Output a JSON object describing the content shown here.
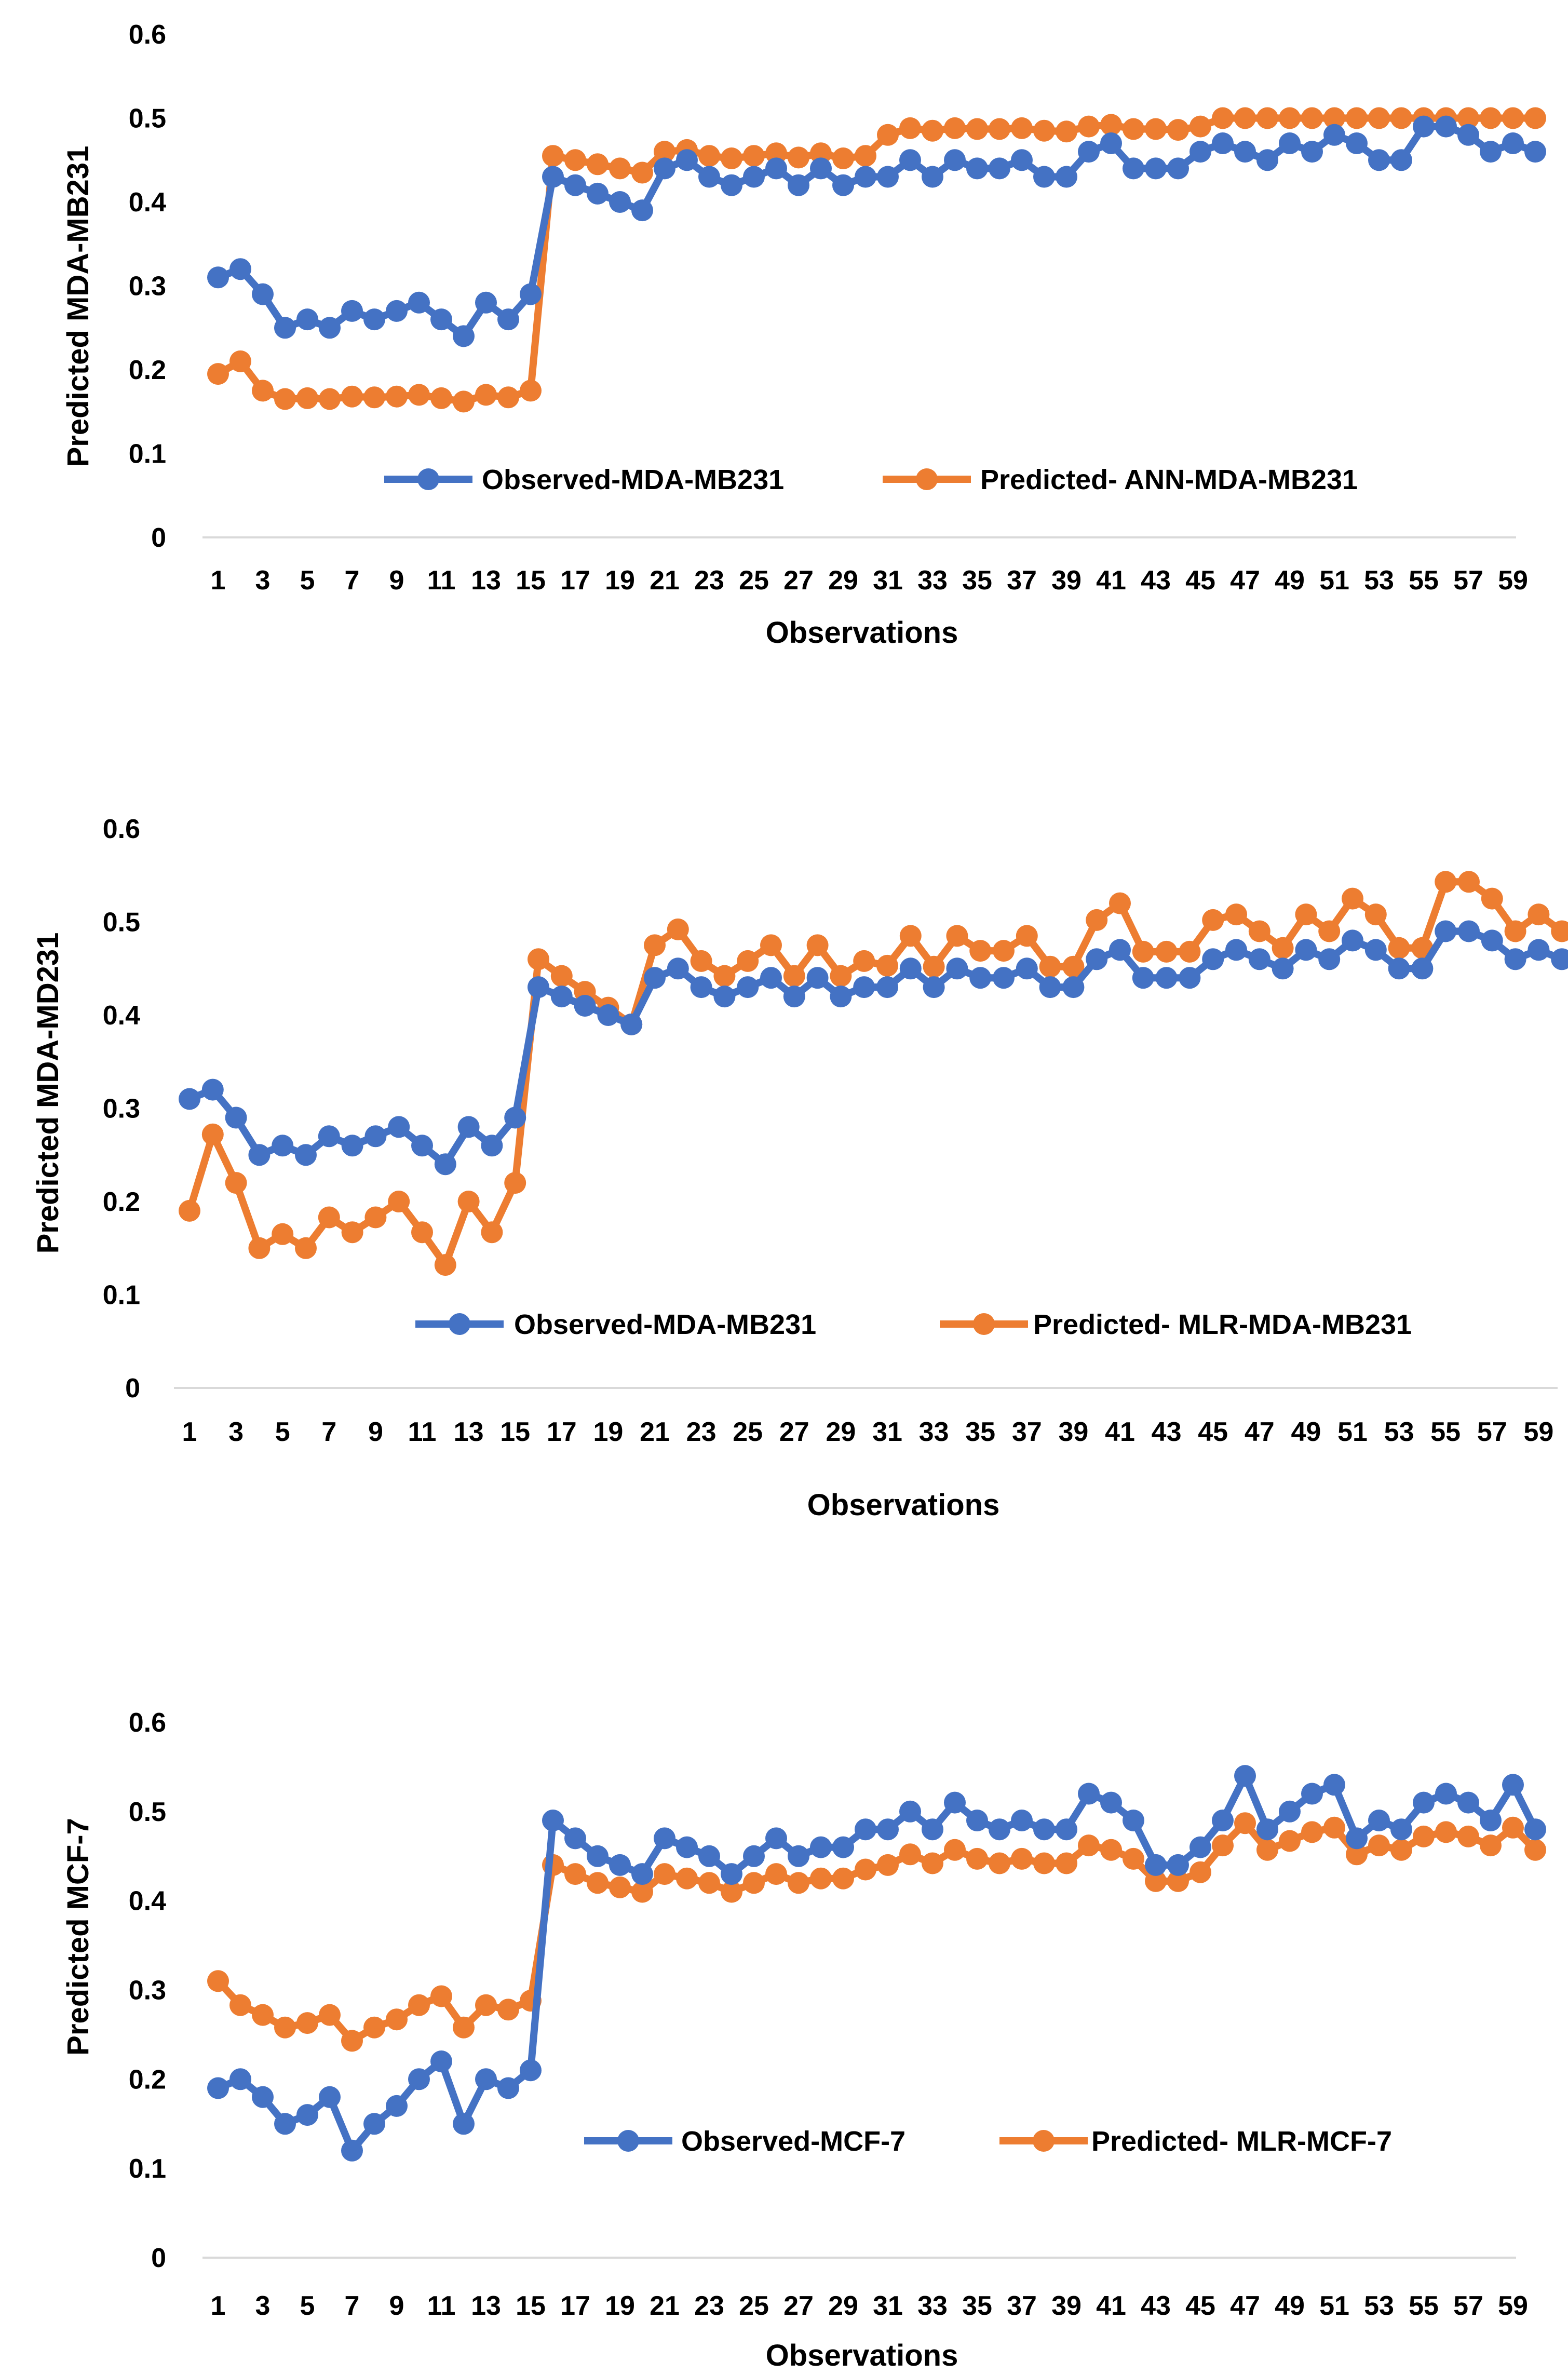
{
  "chart_data": [
    {
      "type": "line",
      "xlabel": "Observations",
      "ylabel": "Predicted MDA-MB231",
      "ylim": [
        0,
        0.6
      ],
      "yticks": [
        "0",
        "0.1",
        "0.2",
        "0.3",
        "0.4",
        "0.5",
        "0.6"
      ],
      "xticks": [
        "1",
        "3",
        "5",
        "7",
        "9",
        "11",
        "13",
        "15",
        "17",
        "19",
        "21",
        "23",
        "25",
        "27",
        "29",
        "31",
        "33",
        "35",
        "37",
        "39",
        "41",
        "43",
        "45",
        "47",
        "49",
        "51",
        "53",
        "55",
        "57",
        "59"
      ],
      "grid": false,
      "legend": "bottom-inside",
      "x": [
        1,
        2,
        3,
        4,
        5,
        6,
        7,
        8,
        9,
        10,
        11,
        12,
        13,
        14,
        15,
        16,
        17,
        18,
        19,
        20,
        21,
        22,
        23,
        24,
        25,
        26,
        27,
        28,
        29,
        30,
        31,
        32,
        33,
        34,
        35,
        36,
        37,
        38,
        39,
        40,
        41,
        42,
        43,
        44,
        45,
        46,
        47,
        48,
        49,
        50,
        51,
        52,
        53,
        54,
        55,
        56,
        57,
        58,
        59,
        60
      ],
      "series": [
        {
          "name": "Observed-MDA-MB231",
          "color": "#4472C4",
          "values": [
            0.31,
            0.32,
            0.29,
            0.25,
            0.26,
            0.25,
            0.27,
            0.26,
            0.27,
            0.28,
            0.26,
            0.24,
            0.28,
            0.26,
            0.29,
            0.43,
            0.42,
            0.41,
            0.4,
            0.39,
            0.44,
            0.45,
            0.43,
            0.42,
            0.43,
            0.44,
            0.42,
            0.44,
            0.42,
            0.43,
            0.43,
            0.45,
            0.43,
            0.45,
            0.44,
            0.44,
            0.45,
            0.43,
            0.43,
            0.46,
            0.47,
            0.44,
            0.44,
            0.44,
            0.46,
            0.47,
            0.46,
            0.45,
            0.47,
            0.46,
            0.48,
            0.47,
            0.45,
            0.45,
            0.49,
            0.49,
            0.48,
            0.46,
            0.47,
            0.46
          ]
        },
        {
          "name": "Predicted- ANN-MDA-MB231",
          "color": "#ED7D31",
          "values": [
            0.195,
            0.21,
            0.175,
            0.165,
            0.166,
            0.165,
            0.168,
            0.167,
            0.168,
            0.17,
            0.166,
            0.162,
            0.17,
            0.167,
            0.175,
            0.455,
            0.45,
            0.445,
            0.44,
            0.435,
            0.46,
            0.462,
            0.455,
            0.452,
            0.455,
            0.458,
            0.453,
            0.458,
            0.452,
            0.455,
            0.48,
            0.488,
            0.485,
            0.488,
            0.487,
            0.487,
            0.488,
            0.485,
            0.484,
            0.49,
            0.492,
            0.487,
            0.487,
            0.486,
            0.49,
            0.5,
            0.5,
            0.5,
            0.5,
            0.5,
            0.5,
            0.5,
            0.5,
            0.5,
            0.5,
            0.5,
            0.5,
            0.5,
            0.5,
            0.5
          ]
        }
      ]
    },
    {
      "type": "line",
      "xlabel": "Observations",
      "ylabel": "Predicted MDA-MD231",
      "ylim": [
        0,
        0.6
      ],
      "yticks": [
        "0",
        "0.1",
        "0.2",
        "0.3",
        "0.4",
        "0.5",
        "0.6"
      ],
      "xticks": [
        "1",
        "3",
        "5",
        "7",
        "9",
        "11",
        "13",
        "15",
        "17",
        "19",
        "21",
        "23",
        "25",
        "27",
        "29",
        "31",
        "33",
        "35",
        "37",
        "39",
        "41",
        "43",
        "45",
        "47",
        "49",
        "51",
        "53",
        "55",
        "57",
        "59"
      ],
      "grid": false,
      "legend": "bottom-inside",
      "x": [
        1,
        2,
        3,
        4,
        5,
        6,
        7,
        8,
        9,
        10,
        11,
        12,
        13,
        14,
        15,
        16,
        17,
        18,
        19,
        20,
        21,
        22,
        23,
        24,
        25,
        26,
        27,
        28,
        29,
        30,
        31,
        32,
        33,
        34,
        35,
        36,
        37,
        38,
        39,
        40,
        41,
        42,
        43,
        44,
        45,
        46,
        47,
        48,
        49,
        50,
        51,
        52,
        53,
        54,
        55,
        56,
        57,
        58,
        59,
        60
      ],
      "series": [
        {
          "name": "Observed-MDA-MB231",
          "color": "#4472C4",
          "values": [
            0.31,
            0.32,
            0.29,
            0.25,
            0.26,
            0.25,
            0.27,
            0.26,
            0.27,
            0.28,
            0.26,
            0.24,
            0.28,
            0.26,
            0.29,
            0.43,
            0.42,
            0.41,
            0.4,
            0.39,
            0.44,
            0.45,
            0.43,
            0.42,
            0.43,
            0.44,
            0.42,
            0.44,
            0.42,
            0.43,
            0.43,
            0.45,
            0.43,
            0.45,
            0.44,
            0.44,
            0.45,
            0.43,
            0.43,
            0.46,
            0.47,
            0.44,
            0.44,
            0.44,
            0.46,
            0.47,
            0.46,
            0.45,
            0.47,
            0.46,
            0.48,
            0.47,
            0.45,
            0.45,
            0.49,
            0.49,
            0.48,
            0.46,
            0.47,
            0.46
          ]
        },
        {
          "name": "Predicted- MLR-MDA-MB231",
          "color": "#ED7D31",
          "values": [
            0.19,
            0.272,
            0.22,
            0.15,
            0.165,
            0.15,
            0.183,
            0.167,
            0.183,
            0.2,
            0.167,
            0.132,
            0.2,
            0.167,
            0.22,
            0.46,
            0.442,
            0.425,
            0.408,
            0.39,
            0.475,
            0.492,
            0.458,
            0.442,
            0.458,
            0.475,
            0.442,
            0.475,
            0.442,
            0.458,
            0.453,
            0.485,
            0.452,
            0.485,
            0.469,
            0.469,
            0.485,
            0.452,
            0.452,
            0.502,
            0.52,
            0.468,
            0.468,
            0.468,
            0.502,
            0.508,
            0.49,
            0.472,
            0.508,
            0.49,
            0.525,
            0.508,
            0.472,
            0.472,
            0.543,
            0.543,
            0.525,
            0.49,
            0.508,
            0.49
          ]
        }
      ]
    },
    {
      "type": "line",
      "xlabel": "Observations",
      "ylabel": "Predicted MCF-7",
      "ylim": [
        0,
        0.6
      ],
      "yticks": [
        "0",
        "0.1",
        "0.2",
        "0.3",
        "0.4",
        "0.5",
        "0.6"
      ],
      "xticks": [
        "1",
        "3",
        "5",
        "7",
        "9",
        "11",
        "13",
        "15",
        "17",
        "19",
        "21",
        "23",
        "25",
        "27",
        "29",
        "31",
        "33",
        "35",
        "37",
        "39",
        "41",
        "43",
        "45",
        "47",
        "49",
        "51",
        "53",
        "55",
        "57",
        "59"
      ],
      "grid": false,
      "legend": "bottom-inside",
      "x": [
        1,
        2,
        3,
        4,
        5,
        6,
        7,
        8,
        9,
        10,
        11,
        12,
        13,
        14,
        15,
        16,
        17,
        18,
        19,
        20,
        21,
        22,
        23,
        24,
        25,
        26,
        27,
        28,
        29,
        30,
        31,
        32,
        33,
        34,
        35,
        36,
        37,
        38,
        39,
        40,
        41,
        42,
        43,
        44,
        45,
        46,
        47,
        48,
        49,
        50,
        51,
        52,
        53,
        54,
        55,
        56,
        57,
        58,
        59,
        60
      ],
      "series": [
        {
          "name": "Observed-MCF-7",
          "color": "#4472C4",
          "values": [
            0.19,
            0.2,
            0.18,
            0.15,
            0.16,
            0.18,
            0.12,
            0.15,
            0.17,
            0.2,
            0.22,
            0.15,
            0.2,
            0.19,
            0.21,
            0.49,
            0.47,
            0.45,
            0.44,
            0.43,
            0.47,
            0.46,
            0.45,
            0.43,
            0.45,
            0.47,
            0.45,
            0.46,
            0.46,
            0.48,
            0.48,
            0.5,
            0.48,
            0.51,
            0.49,
            0.48,
            0.49,
            0.48,
            0.48,
            0.52,
            0.51,
            0.49,
            0.44,
            0.44,
            0.46,
            0.49,
            0.54,
            0.48,
            0.5,
            0.52,
            0.53,
            0.47,
            0.49,
            0.48,
            0.51,
            0.52,
            0.51,
            0.49,
            0.53,
            0.48
          ]
        },
        {
          "name": "Predicted- MLR-MCF-7",
          "color": "#ED7D31",
          "values": [
            0.31,
            0.283,
            0.272,
            0.258,
            0.263,
            0.272,
            0.243,
            0.258,
            0.267,
            0.283,
            0.293,
            0.258,
            0.283,
            0.278,
            0.288,
            0.44,
            0.43,
            0.42,
            0.415,
            0.41,
            0.43,
            0.425,
            0.42,
            0.41,
            0.42,
            0.43,
            0.42,
            0.425,
            0.425,
            0.435,
            0.44,
            0.452,
            0.442,
            0.457,
            0.447,
            0.442,
            0.447,
            0.442,
            0.442,
            0.462,
            0.457,
            0.447,
            0.422,
            0.422,
            0.432,
            0.462,
            0.487,
            0.457,
            0.467,
            0.477,
            0.482,
            0.452,
            0.462,
            0.457,
            0.472,
            0.477,
            0.472,
            0.462,
            0.482,
            0.457
          ]
        }
      ]
    }
  ]
}
